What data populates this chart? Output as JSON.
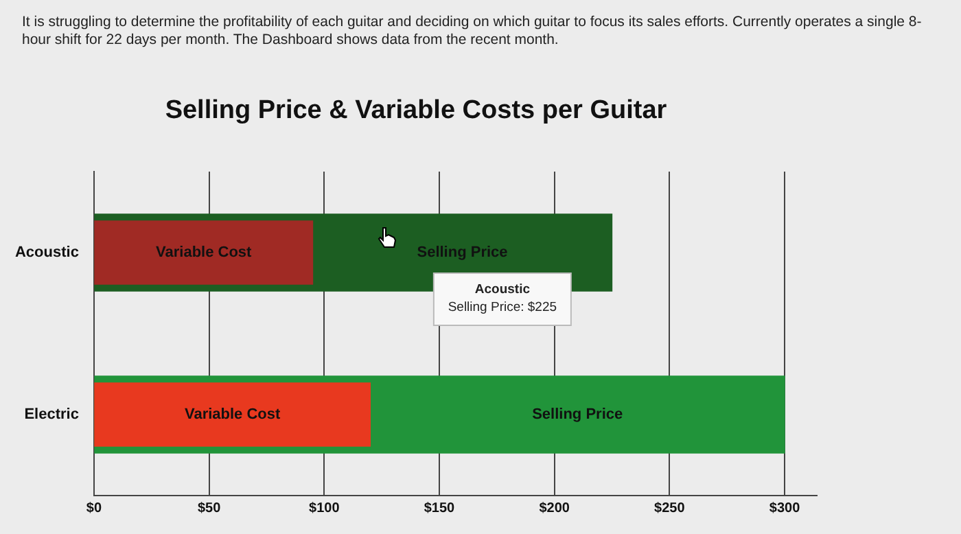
{
  "chart_data": {
    "type": "bar",
    "orientation": "horizontal",
    "title": "Selling Price & Variable Costs per Guitar",
    "subtitle": "It is struggling to determine the profitability of each guitar and deciding on which guitar to focus its sales efforts. Currently operates a single 8-hour shift for 22 days per month. The Dashboard shows data from the recent month.",
    "categories": [
      "Acoustic",
      "Electric"
    ],
    "series": [
      {
        "name": "Selling Price",
        "colors": [
          "#1c5e22",
          "#21943a"
        ],
        "values": [
          225,
          300
        ]
      },
      {
        "name": "Variable Cost",
        "colors": [
          "#a02a24",
          "#e8391f"
        ],
        "values": [
          95,
          120
        ]
      }
    ],
    "xlim": [
      0,
      314
    ],
    "xticks": [
      {
        "value": 0,
        "label": "$0"
      },
      {
        "value": 50,
        "label": "$50"
      },
      {
        "value": 100,
        "label": "$100"
      },
      {
        "value": 150,
        "label": "$150"
      },
      {
        "value": 200,
        "label": "$200"
      },
      {
        "value": 250,
        "label": "$250"
      },
      {
        "value": 300,
        "label": "$300"
      }
    ],
    "grid": "x",
    "legend": false,
    "annotations": [
      "Acoustic\nSelling Price: $225"
    ]
  }
}
